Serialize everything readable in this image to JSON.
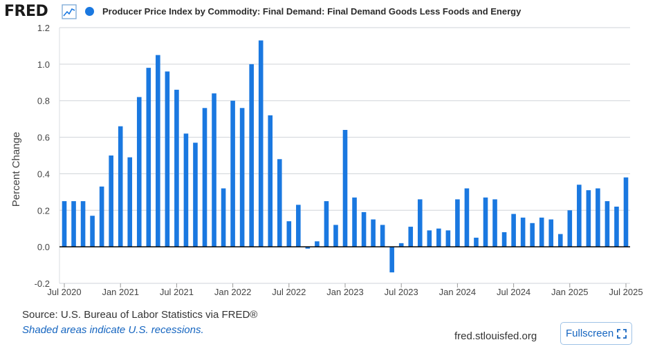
{
  "header": {
    "logo_text": "FRED",
    "logo_icon": "line-chart-icon",
    "title": "Producer Price Index by Commodity: Final Demand: Final Demand Goods Less Foods and Energy"
  },
  "colors": {
    "series": "#1a78e0",
    "zero_line": "#000000",
    "grid": "#cfd3d8",
    "plot_bg": "#ffffff"
  },
  "chart_data": {
    "type": "bar",
    "title": "Producer Price Index by Commodity: Final Demand: Final Demand Goods Less Foods and Energy",
    "ylabel": "Percent Change",
    "xlabel": "",
    "ylim": [
      -0.2,
      1.2
    ],
    "yticks": [
      "1.2",
      "1.0",
      "0.8",
      "0.6",
      "0.4",
      "0.2",
      "0.0",
      "-0.2"
    ],
    "ytick_values": [
      1.2,
      1.0,
      0.8,
      0.6,
      0.4,
      0.2,
      0.0,
      -0.2
    ],
    "xticks": [
      {
        "label": "Jul 2020",
        "index": 0
      },
      {
        "label": "Jan 2021",
        "index": 6
      },
      {
        "label": "Jul 2021",
        "index": 12
      },
      {
        "label": "Jan 2022",
        "index": 18
      },
      {
        "label": "Jul 2022",
        "index": 24
      },
      {
        "label": "Jan 2023",
        "index": 30
      },
      {
        "label": "Jul 2023",
        "index": 36
      },
      {
        "label": "Jan 2024",
        "index": 42
      },
      {
        "label": "Jul 2024",
        "index": 48
      },
      {
        "label": "Jan 2025",
        "index": 54
      },
      {
        "label": "Jul 2025",
        "index": 60
      }
    ],
    "grid": true,
    "series": [
      {
        "name": "Producer Price Index by Commodity: Final Demand: Final Demand Goods Less Foods and Energy",
        "start": "2020-07",
        "frequency": "monthly",
        "values": [
          0.25,
          0.25,
          0.25,
          0.17,
          0.33,
          0.5,
          0.66,
          0.49,
          0.82,
          0.98,
          1.05,
          0.96,
          0.86,
          0.62,
          0.57,
          0.76,
          0.84,
          0.32,
          0.8,
          0.76,
          1.0,
          1.13,
          0.72,
          0.48,
          0.14,
          0.23,
          -0.01,
          0.03,
          0.25,
          0.12,
          0.64,
          0.27,
          0.19,
          0.15,
          0.12,
          -0.14,
          0.02,
          0.11,
          0.26,
          0.09,
          0.1,
          0.09,
          0.26,
          0.32,
          0.05,
          0.27,
          0.26,
          0.08,
          0.18,
          0.16,
          0.13,
          0.16,
          0.15,
          0.07,
          0.2,
          0.34,
          0.31,
          0.32,
          0.25,
          0.22,
          0.38
        ]
      }
    ]
  },
  "footer": {
    "source": "Source: U.S. Bureau of Labor Statistics via FRED®",
    "note": "Shaded areas indicate U.S. recessions.",
    "site": "fred.stlouisfed.org",
    "fullscreen_label": "Fullscreen",
    "fullscreen_icon": "expand-icon"
  }
}
